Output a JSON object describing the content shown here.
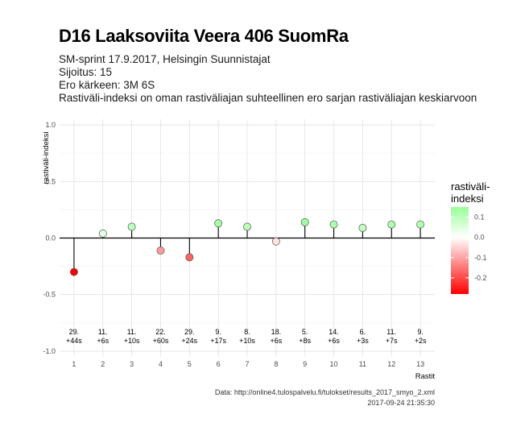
{
  "header": {
    "title": "D16 Laaksoviita Veera 406 SuomRa",
    "subtitle_lines": [
      "SM-sprint 17.9.2017, Helsingin Suunnistajat",
      "Sijoitus: 15",
      "Ero kärkeen: 3M 6S",
      "Rastiväli-indeksi on oman rastiväliajan suhteellinen ero sarjan rastiväliajan keskiarvoon"
    ]
  },
  "caption": {
    "source": "Data: http://online4.tulospalvelu.fi/tulokset/results_2017_smyo_2.xml",
    "timestamp": "2017-09-24 21:35:30"
  },
  "chart_data": {
    "type": "scatter",
    "style": "lollipop",
    "xlabel": "Rastit",
    "ylabel": "rastiväli-indeksi",
    "x": [
      1,
      2,
      3,
      4,
      5,
      6,
      7,
      8,
      9,
      10,
      11,
      12,
      13
    ],
    "values": [
      -0.3,
      0.04,
      0.1,
      -0.11,
      -0.17,
      0.13,
      0.1,
      -0.03,
      0.14,
      0.12,
      0.09,
      0.12,
      0.12
    ],
    "annotations": [
      [
        "29.",
        "+44s"
      ],
      [
        "11.",
        "+6s"
      ],
      [
        "11.",
        "+10s"
      ],
      [
        "22.",
        "+60s"
      ],
      [
        "29.",
        "+24s"
      ],
      [
        "9.",
        "+17s"
      ],
      [
        "8.",
        "+10s"
      ],
      [
        "18.",
        "+6s"
      ],
      [
        "5.",
        "+8s"
      ],
      [
        "14.",
        "+6s"
      ],
      [
        "6.",
        "+3s"
      ],
      [
        "11.",
        "+7s"
      ],
      [
        "9.",
        "+2s"
      ]
    ],
    "xticks": [
      "1",
      "2",
      "3",
      "4",
      "5",
      "6",
      "7",
      "8",
      "9",
      "10",
      "11",
      "12",
      "13"
    ],
    "yticks": [
      "-1.0",
      "-0.5",
      "0.0",
      "0.5",
      "1.0"
    ],
    "ylim": [
      -1.05,
      1.05
    ],
    "grid": true,
    "legend": {
      "title_lines": [
        "rastiväli-",
        "indeksi"
      ],
      "ticks": [
        "0.1",
        "0.0",
        "-0.1",
        "-0.2"
      ],
      "range": [
        -0.28,
        0.15
      ],
      "colors": {
        "low": "#ff0000",
        "mid": "#ffffff",
        "high": "#99ff99"
      },
      "placement": "right"
    }
  }
}
